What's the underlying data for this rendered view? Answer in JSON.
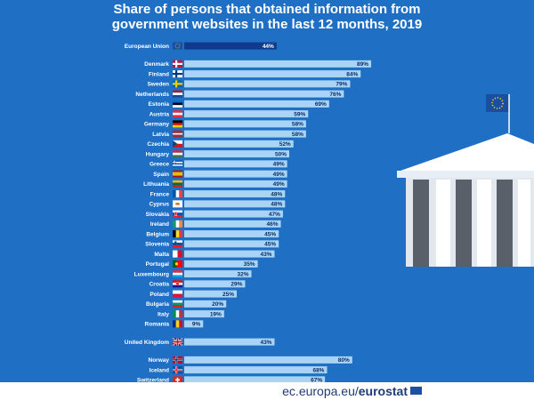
{
  "title": "Share of persons that obtained information from government websites in the last 12 months, 2019",
  "source": {
    "prefix": "ec.europa.eu/",
    "brand": "eurostat"
  },
  "colors": {
    "background": "#1f6fc5",
    "bar": "#a9d4f5",
    "eu_bar": "#123a8c",
    "label": "#ffffff",
    "value": "#0b2f66"
  },
  "chart_data": {
    "type": "bar",
    "orientation": "horizontal",
    "unit": "%",
    "xlim": [
      0,
      100
    ],
    "groups": [
      {
        "categories": [
          "European Union"
        ],
        "values": [
          44
        ],
        "flags": [
          "eu"
        ]
      },
      {
        "categories": [
          "Denmark",
          "Finland",
          "Sweden",
          "Netherlands",
          "Estonia",
          "Austria",
          "Germany",
          "Latvia",
          "Czechia",
          "Hungary",
          "Greece",
          "Spain",
          "Lithuania",
          "France",
          "Cyprus",
          "Slovakia",
          "Ireland",
          "Belgium",
          "Slovenia",
          "Malta",
          "Portugal",
          "Luxembourg",
          "Croatia",
          "Poland",
          "Bulgaria",
          "Italy",
          "Romania"
        ],
        "values": [
          89,
          84,
          79,
          76,
          69,
          59,
          58,
          58,
          52,
          50,
          49,
          49,
          49,
          48,
          48,
          47,
          46,
          45,
          45,
          43,
          35,
          32,
          29,
          25,
          20,
          19,
          9
        ],
        "flags": [
          "dk",
          "fi",
          "se",
          "nl",
          "ee",
          "at",
          "de",
          "lv",
          "cz",
          "hu",
          "gr",
          "es",
          "lt",
          "fr",
          "cy",
          "sk",
          "ie",
          "be",
          "si",
          "mt",
          "pt",
          "lu",
          "hr",
          "pl",
          "bg",
          "it",
          "ro"
        ]
      },
      {
        "categories": [
          "United Kingdom"
        ],
        "values": [
          43
        ],
        "flags": [
          "uk"
        ]
      },
      {
        "categories": [
          "Norway",
          "Iceland",
          "Switzerland"
        ],
        "values": [
          80,
          68,
          67
        ],
        "flags": [
          "no",
          "is",
          "ch"
        ]
      }
    ]
  }
}
